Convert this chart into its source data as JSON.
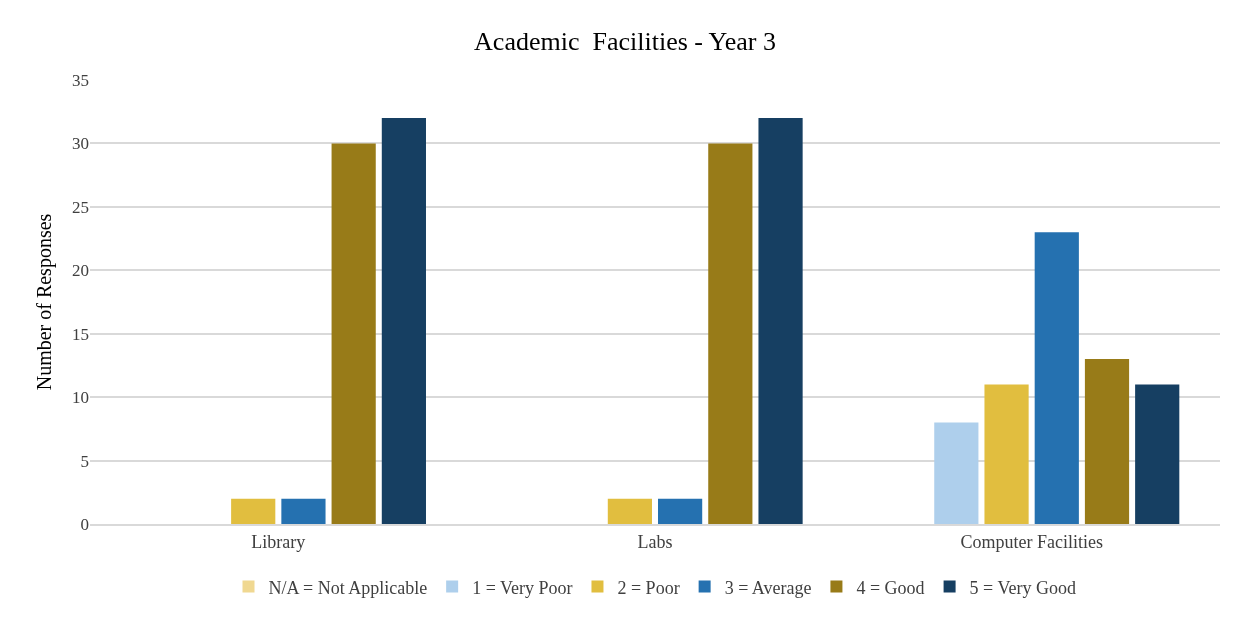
{
  "chart_data": {
    "type": "bar",
    "title": "Academic  Facilities - Year 3",
    "ylabel": "Number of Responses",
    "categories": [
      "Library",
      "Labs",
      "Computer Facilities"
    ],
    "series": [
      {
        "name": "N/A = Not Applicable",
        "color": "#f0d891",
        "values": [
          0,
          0,
          0
        ]
      },
      {
        "name": "1 = Very Poor",
        "color": "#aecfec",
        "values": [
          0,
          0,
          8
        ]
      },
      {
        "name": "2 = Poor",
        "color": "#e1be3f",
        "values": [
          2,
          2,
          11
        ]
      },
      {
        "name": "3 = Average",
        "color": "#2571b0",
        "values": [
          2,
          2,
          23
        ]
      },
      {
        "name": "4 = Good",
        "color": "#987b18",
        "values": [
          30,
          30,
          13
        ]
      },
      {
        "name": "5 = Very Good",
        "color": "#163f62",
        "values": [
          32,
          32,
          11
        ]
      }
    ],
    "ylim": [
      0,
      35
    ],
    "yticks": [
      0,
      5,
      10,
      15,
      20,
      25,
      30,
      35
    ],
    "grid": "y",
    "legend": "bottom"
  }
}
